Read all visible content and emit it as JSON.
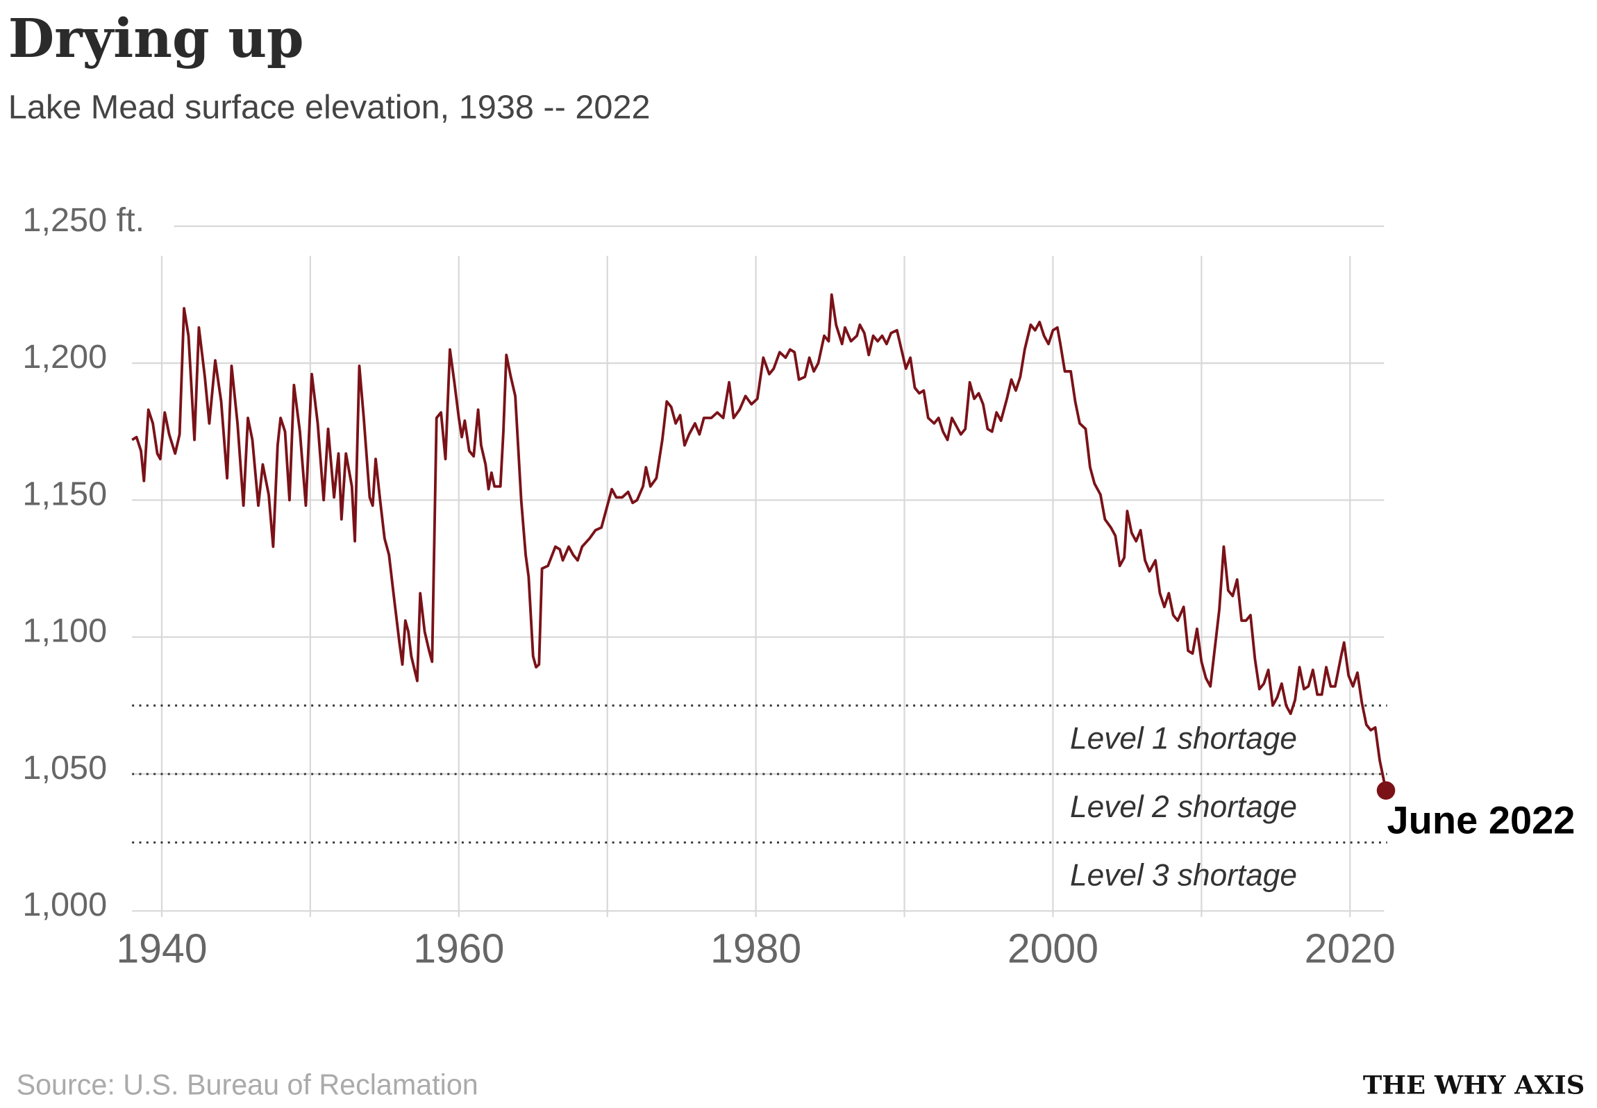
{
  "chart_data": {
    "type": "line",
    "title": "Drying up",
    "subtitle": "Lake Mead surface elevation, 1938 -- 2022",
    "source": "Source: U.S. Bureau of Reclamation",
    "brand": "THE WHY AXIS",
    "annotation": "June 2022",
    "color": "#7a1218",
    "grid": true,
    "xlim": [
      1938,
      2022.5
    ],
    "ylim": [
      1000,
      1250
    ],
    "xticks": [
      1940,
      1960,
      1980,
      2000,
      2020
    ],
    "xgrid": [
      1940,
      1950,
      1960,
      1970,
      1980,
      1990,
      2000,
      2010,
      2020
    ],
    "yticks": [
      {
        "value": 1000,
        "label": "1,000"
      },
      {
        "value": 1050,
        "label": "1,050"
      },
      {
        "value": 1100,
        "label": "1,100"
      },
      {
        "value": 1150,
        "label": "1,150"
      },
      {
        "value": 1200,
        "label": "1,200"
      },
      {
        "value": 1250,
        "label": "1,250 ft."
      }
    ],
    "reference_lines": [
      {
        "value": 1075,
        "label": "Level 1 shortage"
      },
      {
        "value": 1050,
        "label": "Level 2 shortage"
      },
      {
        "value": 1025,
        "label": "Level 3 shortage"
      }
    ],
    "x": [
      1938,
      1938.3,
      1938.6,
      1938.8,
      1939.1,
      1939.4,
      1939.7,
      1939.9,
      1940.2,
      1940.5,
      1940.9,
      1941.2,
      1941.5,
      1941.8,
      1942.2,
      1942.5,
      1942.9,
      1943.2,
      1943.6,
      1944.0,
      1944.4,
      1944.7,
      1945.1,
      1945.5,
      1945.8,
      1946.1,
      1946.5,
      1946.8,
      1947.2,
      1947.5,
      1947.8,
      1948.0,
      1948.3,
      1948.6,
      1948.9,
      1949.3,
      1949.7,
      1950.1,
      1950.5,
      1950.9,
      1951.2,
      1951.6,
      1951.9,
      1952.1,
      1952.4,
      1952.8,
      1953.0,
      1953.3,
      1953.6,
      1954.0,
      1954.2,
      1954.4,
      1954.7,
      1955.0,
      1955.3,
      1955.6,
      1956.0,
      1956.2,
      1956.4,
      1956.6,
      1956.8,
      1957.2,
      1957.4,
      1957.7,
      1958.0,
      1958.2,
      1958.5,
      1958.8,
      1959.1,
      1959.4,
      1959.7,
      1960.0,
      1960.2,
      1960.4,
      1960.7,
      1961.0,
      1961.3,
      1961.5,
      1961.8,
      1962.0,
      1962.2,
      1962.4,
      1962.8,
      1963.0,
      1963.2,
      1963.5,
      1963.8,
      1964.2,
      1964.5,
      1964.7,
      1965.0,
      1965.2,
      1965.4,
      1965.6,
      1966.0,
      1966.5,
      1966.8,
      1967.0,
      1967.4,
      1967.7,
      1968.0,
      1968.3,
      1968.8,
      1969.2,
      1969.6,
      1970.0,
      1970.3,
      1970.6,
      1971.0,
      1971.4,
      1971.7,
      1972.0,
      1972.4,
      1972.6,
      1972.9,
      1973.3,
      1973.7,
      1974.0,
      1974.3,
      1974.6,
      1974.9,
      1975.2,
      1975.5,
      1975.9,
      1976.2,
      1976.5,
      1977.0,
      1977.4,
      1977.8,
      1978.2,
      1978.5,
      1978.9,
      1979.3,
      1979.7,
      1980.1,
      1980.5,
      1980.9,
      1981.2,
      1981.6,
      1982.0,
      1982.3,
      1982.6,
      1982.9,
      1983.3,
      1983.6,
      1983.9,
      1984.2,
      1984.6,
      1984.9,
      1985.1,
      1985.4,
      1985.8,
      1986.0,
      1986.4,
      1986.8,
      1987.0,
      1987.3,
      1987.6,
      1987.9,
      1988.2,
      1988.5,
      1988.8,
      1989.1,
      1989.5,
      1989.8,
      1990.1,
      1990.4,
      1990.7,
      1991.0,
      1991.3,
      1991.6,
      1992.0,
      1992.3,
      1992.6,
      1992.9,
      1993.2,
      1993.5,
      1993.8,
      1994.1,
      1994.4,
      1994.7,
      1995.0,
      1995.3,
      1995.6,
      1995.9,
      1996.2,
      1996.5,
      1996.9,
      1997.2,
      1997.5,
      1997.8,
      1998.1,
      1998.5,
      1998.8,
      1999.1,
      1999.4,
      1999.7,
      2000.0,
      2000.3,
      2000.5,
      2000.8,
      2001.2,
      2001.5,
      2001.8,
      2002.2,
      2002.5,
      2002.8,
      2003.2,
      2003.5,
      2003.9,
      2004.2,
      2004.5,
      2004.8,
      2005.0,
      2005.3,
      2005.6,
      2005.9,
      2006.2,
      2006.5,
      2006.9,
      2007.2,
      2007.5,
      2007.8,
      2008.1,
      2008.4,
      2008.8,
      2009.1,
      2009.4,
      2009.7,
      2010.0,
      2010.3,
      2010.6,
      2010.9,
      2011.2,
      2011.5,
      2011.8,
      2012.1,
      2012.4,
      2012.7,
      2013.0,
      2013.3,
      2013.6,
      2013.9,
      2014.2,
      2014.5,
      2014.8,
      2015.1,
      2015.4,
      2015.7,
      2016.0,
      2016.3,
      2016.6,
      2016.9,
      2017.2,
      2017.5,
      2017.8,
      2018.1,
      2018.4,
      2018.7,
      2019.0,
      2019.4,
      2019.6,
      2019.9,
      2020.2,
      2020.5,
      2020.8,
      2021.1,
      2021.4,
      2021.7,
      2022.0,
      2022.42
    ],
    "values": [
      1172,
      1173,
      1168,
      1157,
      1183,
      1178,
      1167,
      1165,
      1182,
      1174,
      1167,
      1174,
      1220,
      1210,
      1172,
      1213,
      1195,
      1178,
      1201,
      1186,
      1158,
      1199,
      1178,
      1148,
      1180,
      1172,
      1148,
      1163,
      1152,
      1133,
      1170,
      1180,
      1175,
      1150,
      1192,
      1175,
      1148,
      1196,
      1178,
      1150,
      1176,
      1151,
      1167,
      1143,
      1167,
      1155,
      1135,
      1199,
      1180,
      1151,
      1148,
      1165,
      1150,
      1136,
      1130,
      1116,
      1098,
      1090,
      1106,
      1102,
      1093,
      1084,
      1116,
      1102,
      1095,
      1091,
      1180,
      1182,
      1165,
      1205,
      1193,
      1180,
      1173,
      1179,
      1168,
      1166,
      1183,
      1170,
      1163,
      1154,
      1160,
      1155,
      1155,
      1175,
      1203,
      1195,
      1188,
      1150,
      1130,
      1122,
      1093,
      1089,
      1090,
      1125,
      1126,
      1133,
      1132,
      1128,
      1133,
      1130,
      1128,
      1133,
      1136,
      1139,
      1140,
      1148,
      1154,
      1151,
      1151,
      1153,
      1149,
      1150,
      1155,
      1162,
      1155,
      1158,
      1172,
      1186,
      1184,
      1178,
      1181,
      1170,
      1174,
      1178,
      1174,
      1180,
      1180,
      1182,
      1180,
      1193,
      1180,
      1183,
      1188,
      1185,
      1187,
      1202,
      1196,
      1198,
      1204,
      1202,
      1205,
      1204,
      1194,
      1195,
      1202,
      1197,
      1200,
      1210,
      1208,
      1225,
      1214,
      1207,
      1213,
      1208,
      1210,
      1214,
      1211,
      1203,
      1210,
      1208,
      1210,
      1207,
      1211,
      1212,
      1205,
      1198,
      1202,
      1191,
      1189,
      1190,
      1180,
      1178,
      1180,
      1175,
      1172,
      1180,
      1177,
      1174,
      1176,
      1193,
      1187,
      1189,
      1185,
      1176,
      1175,
      1182,
      1179,
      1187,
      1194,
      1190,
      1195,
      1205,
      1214,
      1212,
      1215,
      1210,
      1207,
      1212,
      1213,
      1207,
      1197,
      1197,
      1186,
      1178,
      1176,
      1162,
      1156,
      1152,
      1143,
      1140,
      1137,
      1126,
      1129,
      1146,
      1138,
      1135,
      1139,
      1128,
      1124,
      1128,
      1116,
      1111,
      1116,
      1108,
      1106,
      1111,
      1095,
      1094,
      1103,
      1091,
      1085,
      1082,
      1096,
      1110,
      1133,
      1117,
      1115,
      1121,
      1106,
      1106,
      1108,
      1092,
      1081,
      1083,
      1088,
      1075,
      1078,
      1083,
      1075,
      1072,
      1077,
      1089,
      1081,
      1082,
      1088,
      1079,
      1079,
      1089,
      1082,
      1082,
      1093,
      1098,
      1086,
      1082,
      1087,
      1076,
      1068,
      1066,
      1067,
      1055,
      1044
    ]
  }
}
